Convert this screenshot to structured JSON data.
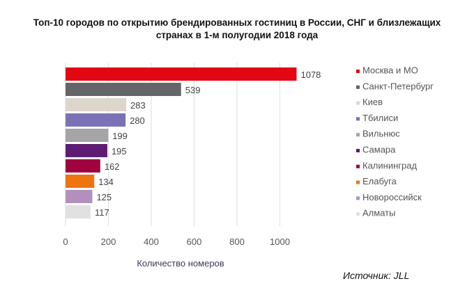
{
  "chart_data": {
    "type": "bar",
    "orientation": "horizontal",
    "title": "Топ-10 городов по открытию брендированных гостиниц в России, СНГ и близлежащих странах в 1-м полугодии 2018 года",
    "title_lines": [
      "Топ-10 городов по открытию брендированных гостиниц в России, СНГ и близлежащих",
      "странах в 1-м полугодии 2018 года"
    ],
    "categories": [
      "Москва и МО",
      "Санкт-Петербург",
      "Киев",
      "Тбилиси",
      "Вильнюс",
      "Самара",
      "Калининград",
      "Елабуга",
      "Новороссийск",
      "Алматы"
    ],
    "values": [
      1078,
      539,
      283,
      280,
      199,
      195,
      162,
      134,
      125,
      117
    ],
    "colors": [
      "#e30613",
      "#646469",
      "#ddd6cc",
      "#7a72b6",
      "#a5a4a8",
      "#5e1d72",
      "#a00340",
      "#ee7311",
      "#b28fbd",
      "#e2e0e3"
    ],
    "xlabel": "Количество номеров",
    "xlim": [
      0,
      1100
    ],
    "xticks": [
      0,
      200,
      400,
      600,
      800,
      1000
    ],
    "grid": true,
    "legend_position": "right"
  },
  "source": "Источник: JLL"
}
